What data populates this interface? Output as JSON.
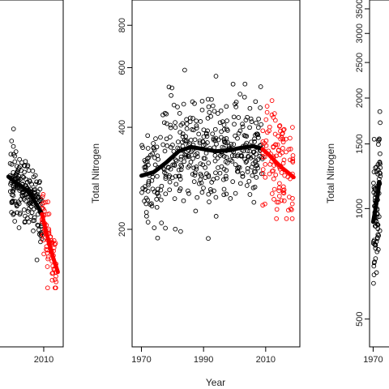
{
  "chart_data": [
    {
      "type": "scatter",
      "ylog": true,
      "xlim": [
        1967,
        2021
      ],
      "ylim": [
        85,
        7000
      ],
      "x_ticks": [
        {
          "value": 2010,
          "label": "2010"
        }
      ],
      "y_ticks": [],
      "ylabel": "",
      "xlabel": "",
      "colors": {
        "early": "#000000",
        "recent": "#ff0000"
      },
      "smooth_early": [
        [
          1990,
          740
        ],
        [
          1994,
          690
        ],
        [
          1998,
          650
        ],
        [
          2002,
          600
        ],
        [
          2006,
          520
        ],
        [
          2009,
          460
        ]
      ],
      "smooth_recent": [
        [
          2009,
          460
        ],
        [
          2011,
          380
        ],
        [
          2013,
          320
        ],
        [
          2015,
          270
        ],
        [
          2018,
          220
        ]
      ],
      "early_x": [
        1991,
        2009
      ],
      "early_range": [
        150,
        2600
      ],
      "recent_x": [
        2009,
        2017
      ],
      "recent_range": [
        180,
        1200
      ],
      "n_early": 200,
      "n_recent": 70
    },
    {
      "type": "scatter",
      "ylog": true,
      "xlim": [
        1967,
        2021
      ],
      "ylim": [
        90,
        950
      ],
      "x_ticks": [
        {
          "value": 1970,
          "label": "1970"
        },
        {
          "value": 1990,
          "label": "1990"
        },
        {
          "value": 2010,
          "label": "2010"
        }
      ],
      "y_ticks": [
        {
          "value": 200,
          "label": "200"
        },
        {
          "value": 400,
          "label": "400"
        },
        {
          "value": 600,
          "label": "600"
        },
        {
          "value": 800,
          "label": "800"
        }
      ],
      "ylabel": "Total Nitrogen",
      "xlabel": "Year",
      "colors": {
        "early": "#000000",
        "recent": "#ff0000"
      },
      "smooth_early": [
        [
          1970,
          288
        ],
        [
          1974,
          295
        ],
        [
          1978,
          315
        ],
        [
          1982,
          340
        ],
        [
          1986,
          350
        ],
        [
          1990,
          345
        ],
        [
          1994,
          340
        ],
        [
          1998,
          342
        ],
        [
          2002,
          348
        ],
        [
          2006,
          352
        ],
        [
          2009,
          345
        ]
      ],
      "smooth_recent": [
        [
          2009,
          345
        ],
        [
          2011,
          332
        ],
        [
          2013,
          318
        ],
        [
          2015,
          305
        ],
        [
          2017,
          295
        ],
        [
          2019,
          285
        ]
      ],
      "early_x": [
        1970,
        2009
      ],
      "early_range": [
        180,
        620
      ],
      "recent_x": [
        2009,
        2019
      ],
      "recent_range": [
        215,
        500
      ],
      "n_early": 420,
      "n_recent": 110
    },
    {
      "type": "scatter",
      "ylog": true,
      "xlim": [
        1967,
        2021
      ],
      "ylim": [
        420,
        3700
      ],
      "x_ticks": [
        {
          "value": 1970,
          "label": "1970"
        }
      ],
      "y_ticks": [
        {
          "value": 500,
          "label": "500"
        },
        {
          "value": 1000,
          "label": "1000"
        },
        {
          "value": 1500,
          "label": "1500"
        },
        {
          "value": 2000,
          "label": "2000"
        },
        {
          "value": 2500,
          "label": "2500"
        },
        {
          "value": 3000,
          "label": "3000"
        },
        {
          "value": 3500,
          "label": "3500"
        }
      ],
      "ylabel": "Total Nitrogen",
      "xlabel": "",
      "colors": {
        "early": "#000000",
        "recent": "#ff0000"
      },
      "smooth_early": [
        [
          1970,
          920
        ],
        [
          1972,
          1000
        ],
        [
          1974,
          1100
        ],
        [
          1975,
          1180
        ]
      ],
      "smooth_recent": [],
      "early_x": [
        1970,
        1976
      ],
      "early_range": [
        560,
        1900
      ],
      "recent_x": [
        2009,
        2009
      ],
      "recent_range": [
        500,
        500
      ],
      "n_early": 90,
      "n_recent": 0
    }
  ]
}
